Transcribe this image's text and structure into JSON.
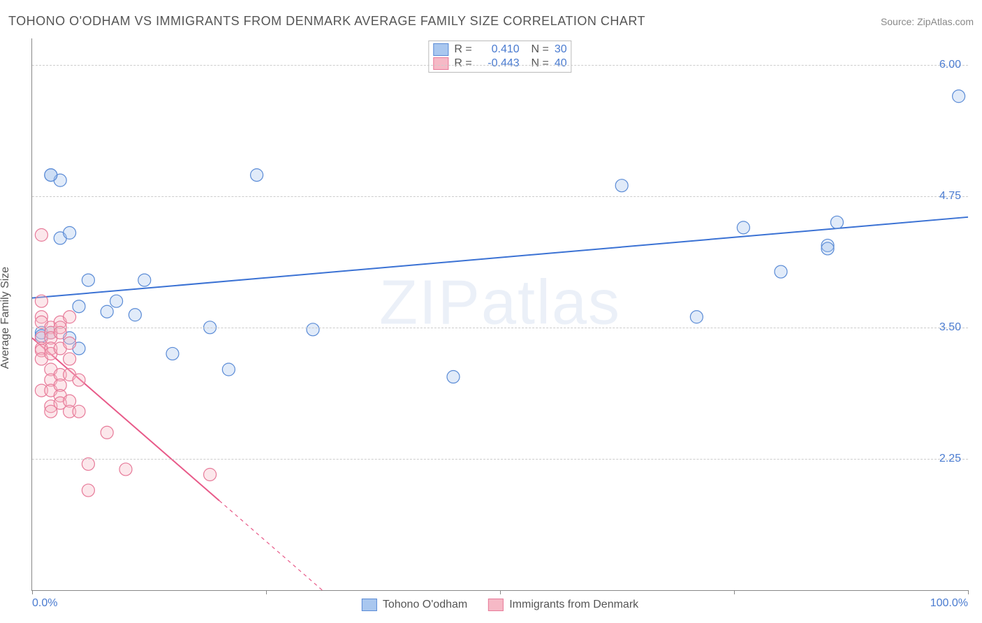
{
  "title": "TOHONO O'ODHAM VS IMMIGRANTS FROM DENMARK AVERAGE FAMILY SIZE CORRELATION CHART",
  "source": "Source: ZipAtlas.com",
  "yaxis_label": "Average Family Size",
  "watermark": "ZIPatlas",
  "chart": {
    "type": "scatter",
    "background_color": "#ffffff",
    "grid_color": "#cccccc",
    "axis_color": "#888888",
    "tick_label_color": "#4a7bd0",
    "ylim": [
      1.0,
      6.25
    ],
    "xlim": [
      0,
      100
    ],
    "yticks": [
      2.25,
      3.5,
      4.75,
      6.0
    ],
    "xticks_minor": [
      0,
      25,
      50,
      75,
      100
    ],
    "xtick_labels": [
      {
        "value": 0,
        "label": "0.0%"
      },
      {
        "value": 100,
        "label": "100.0%"
      }
    ],
    "marker_radius": 9,
    "marker_fill_opacity": 0.35,
    "marker_stroke_width": 1.2,
    "line_width": 2
  },
  "series": [
    {
      "id": "tohono",
      "label": "Tohono O'odham",
      "color_fill": "#a9c7ef",
      "color_stroke": "#5a8bd6",
      "line_color": "#3b72d4",
      "R": "0.410",
      "N": "30",
      "trend": {
        "x1": 0,
        "y1": 3.78,
        "x2": 100,
        "y2": 4.55,
        "dash_from_x": null
      },
      "points": [
        [
          1,
          3.45
        ],
        [
          1,
          3.42
        ],
        [
          2,
          3.45
        ],
        [
          2,
          4.95
        ],
        [
          3,
          4.9
        ],
        [
          3,
          4.35
        ],
        [
          2,
          4.95
        ],
        [
          4,
          3.4
        ],
        [
          4,
          4.4
        ],
        [
          5,
          3.7
        ],
        [
          5,
          3.3
        ],
        [
          6,
          3.95
        ],
        [
          8,
          3.65
        ],
        [
          9,
          3.75
        ],
        [
          11,
          3.62
        ],
        [
          12,
          3.95
        ],
        [
          15,
          3.25
        ],
        [
          19,
          3.5
        ],
        [
          21,
          3.1
        ],
        [
          24,
          4.95
        ],
        [
          30,
          3.48
        ],
        [
          45,
          3.03
        ],
        [
          63,
          4.85
        ],
        [
          71,
          3.6
        ],
        [
          76,
          4.45
        ],
        [
          80,
          4.03
        ],
        [
          85,
          4.28
        ],
        [
          85,
          4.25
        ],
        [
          86,
          4.5
        ],
        [
          99,
          5.7
        ]
      ]
    },
    {
      "id": "denmark",
      "label": "Immigrants from Denmark",
      "color_fill": "#f6b9c6",
      "color_stroke": "#e77a99",
      "line_color": "#e85a89",
      "R": "-0.443",
      "N": "40",
      "trend": {
        "x1": 0,
        "y1": 3.4,
        "x2": 31,
        "y2": 1.0,
        "dash_from_x": 20
      },
      "points": [
        [
          1,
          4.38
        ],
        [
          1,
          3.75
        ],
        [
          1,
          3.6
        ],
        [
          1,
          3.55
        ],
        [
          1,
          3.4
        ],
        [
          1,
          3.3
        ],
        [
          1,
          3.28
        ],
        [
          1,
          3.2
        ],
        [
          1,
          2.9
        ],
        [
          2,
          3.5
        ],
        [
          2,
          3.45
        ],
        [
          2,
          3.4
        ],
        [
          2,
          3.3
        ],
        [
          2,
          3.25
        ],
        [
          2,
          3.1
        ],
        [
          2,
          3.0
        ],
        [
          2,
          2.9
        ],
        [
          2,
          2.75
        ],
        [
          2,
          2.7
        ],
        [
          3,
          3.55
        ],
        [
          3,
          3.5
        ],
        [
          3,
          3.45
        ],
        [
          3,
          3.3
        ],
        [
          3,
          3.05
        ],
        [
          3,
          2.95
        ],
        [
          3,
          2.85
        ],
        [
          3,
          2.78
        ],
        [
          4,
          3.6
        ],
        [
          4,
          3.35
        ],
        [
          4,
          3.2
        ],
        [
          4,
          3.05
        ],
        [
          4,
          2.8
        ],
        [
          4,
          2.7
        ],
        [
          5,
          3.0
        ],
        [
          5,
          2.7
        ],
        [
          6,
          2.2
        ],
        [
          6,
          1.95
        ],
        [
          8,
          2.5
        ],
        [
          10,
          2.15
        ],
        [
          19,
          2.1
        ]
      ]
    }
  ]
}
